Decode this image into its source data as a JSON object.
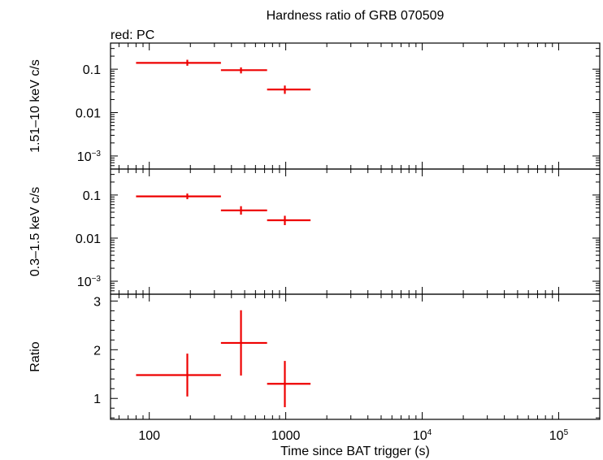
{
  "title": "Hardness ratio of GRB 070509",
  "subtitle": "red: PC",
  "xlabel": "Time since BAT trigger (s)",
  "colors": {
    "series": "#ee0000",
    "axes": "#000000"
  },
  "chart_data": [
    {
      "type": "scatter",
      "panel": "top",
      "ylabel": "1.51–10 keV c/s",
      "xscale": "log",
      "yscale": "log",
      "xlim": [
        52,
        200000
      ],
      "ylim": [
        0.0005,
        0.4
      ],
      "x_ticks": [
        "100",
        "1000",
        "10^4",
        "10^5"
      ],
      "y_ticks": [
        "0.1",
        "0.01",
        "10^-3"
      ],
      "series": [
        {
          "color": "#ee0000",
          "points": [
            {
              "x": 190,
              "xlo": 80,
              "xhi": 335,
              "y": 0.14,
              "ylo": 0.12,
              "yhi": 0.165
            },
            {
              "x": 470,
              "xlo": 335,
              "xhi": 730,
              "y": 0.095,
              "ylo": 0.08,
              "yhi": 0.11
            },
            {
              "x": 985,
              "xlo": 730,
              "xhi": 1520,
              "y": 0.034,
              "ylo": 0.027,
              "yhi": 0.042
            }
          ]
        }
      ]
    },
    {
      "type": "scatter",
      "panel": "middle",
      "ylabel": "0.3–1.5 keV c/s",
      "xscale": "log",
      "yscale": "log",
      "xlim": [
        52,
        200000
      ],
      "ylim": [
        0.0005,
        0.4
      ],
      "x_ticks": [
        "100",
        "1000",
        "10^4",
        "10^5"
      ],
      "y_ticks": [
        "0.1",
        "0.01",
        "10^-3"
      ],
      "series": [
        {
          "color": "#ee0000",
          "points": [
            {
              "x": 190,
              "xlo": 80,
              "xhi": 335,
              "y": 0.093,
              "ylo": 0.08,
              "yhi": 0.108
            },
            {
              "x": 470,
              "xlo": 335,
              "xhi": 730,
              "y": 0.044,
              "ylo": 0.035,
              "yhi": 0.055
            },
            {
              "x": 985,
              "xlo": 730,
              "xhi": 1520,
              "y": 0.026,
              "ylo": 0.02,
              "yhi": 0.033
            }
          ]
        }
      ]
    },
    {
      "type": "scatter",
      "panel": "bottom",
      "ylabel": "Ratio",
      "xscale": "log",
      "yscale": "linear",
      "xlim": [
        52,
        200000
      ],
      "ylim": [
        0.57,
        3.14
      ],
      "x_ticks": [
        "100",
        "1000",
        "10^4",
        "10^5"
      ],
      "y_ticks": [
        "1",
        "2",
        "3"
      ],
      "series": [
        {
          "color": "#ee0000",
          "points": [
            {
              "x": 190,
              "xlo": 80,
              "xhi": 335,
              "y": 1.48,
              "ylo": 1.04,
              "yhi": 1.92
            },
            {
              "x": 470,
              "xlo": 335,
              "xhi": 730,
              "y": 2.14,
              "ylo": 1.47,
              "yhi": 2.81
            },
            {
              "x": 985,
              "xlo": 730,
              "xhi": 1520,
              "y": 1.3,
              "ylo": 0.82,
              "yhi": 1.77
            }
          ]
        }
      ]
    }
  ]
}
